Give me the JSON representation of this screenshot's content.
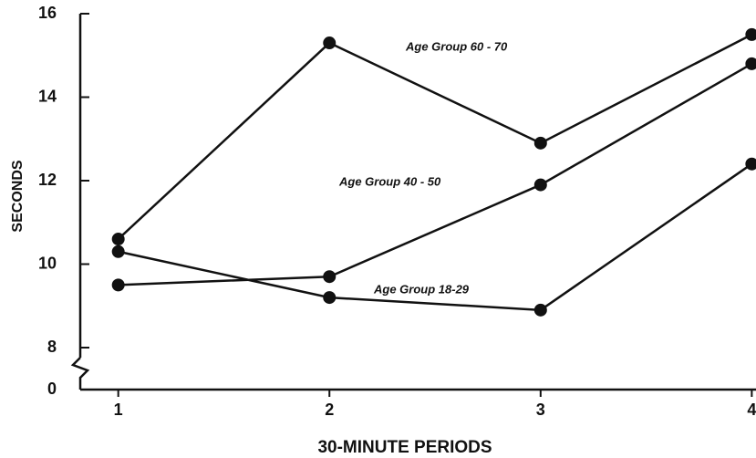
{
  "chart_data": {
    "type": "line",
    "x_label": "30-MINUTE PERIODS",
    "y_label": "SECONDS",
    "x": [
      1,
      2,
      3,
      4
    ],
    "series": [
      {
        "name": "Age Group 60 - 70",
        "color": "#111111",
        "values": [
          10.6,
          15.3,
          12.9,
          15.5
        ]
      },
      {
        "name": "Age Group 40 - 50",
        "color": "#111111",
        "values": [
          9.5,
          9.7,
          11.9,
          14.8
        ]
      },
      {
        "name": "Age Group 18-29",
        "color": "#111111",
        "values": [
          10.3,
          9.2,
          8.9,
          12.4
        ]
      }
    ],
    "xlim": [
      0.82,
      4.02
    ],
    "xticks": [
      1,
      2,
      3,
      4
    ],
    "ylim": [
      0,
      16
    ],
    "yticks": [
      0,
      8,
      10,
      12,
      14,
      16
    ],
    "ybreak": [
      0,
      8
    ]
  }
}
